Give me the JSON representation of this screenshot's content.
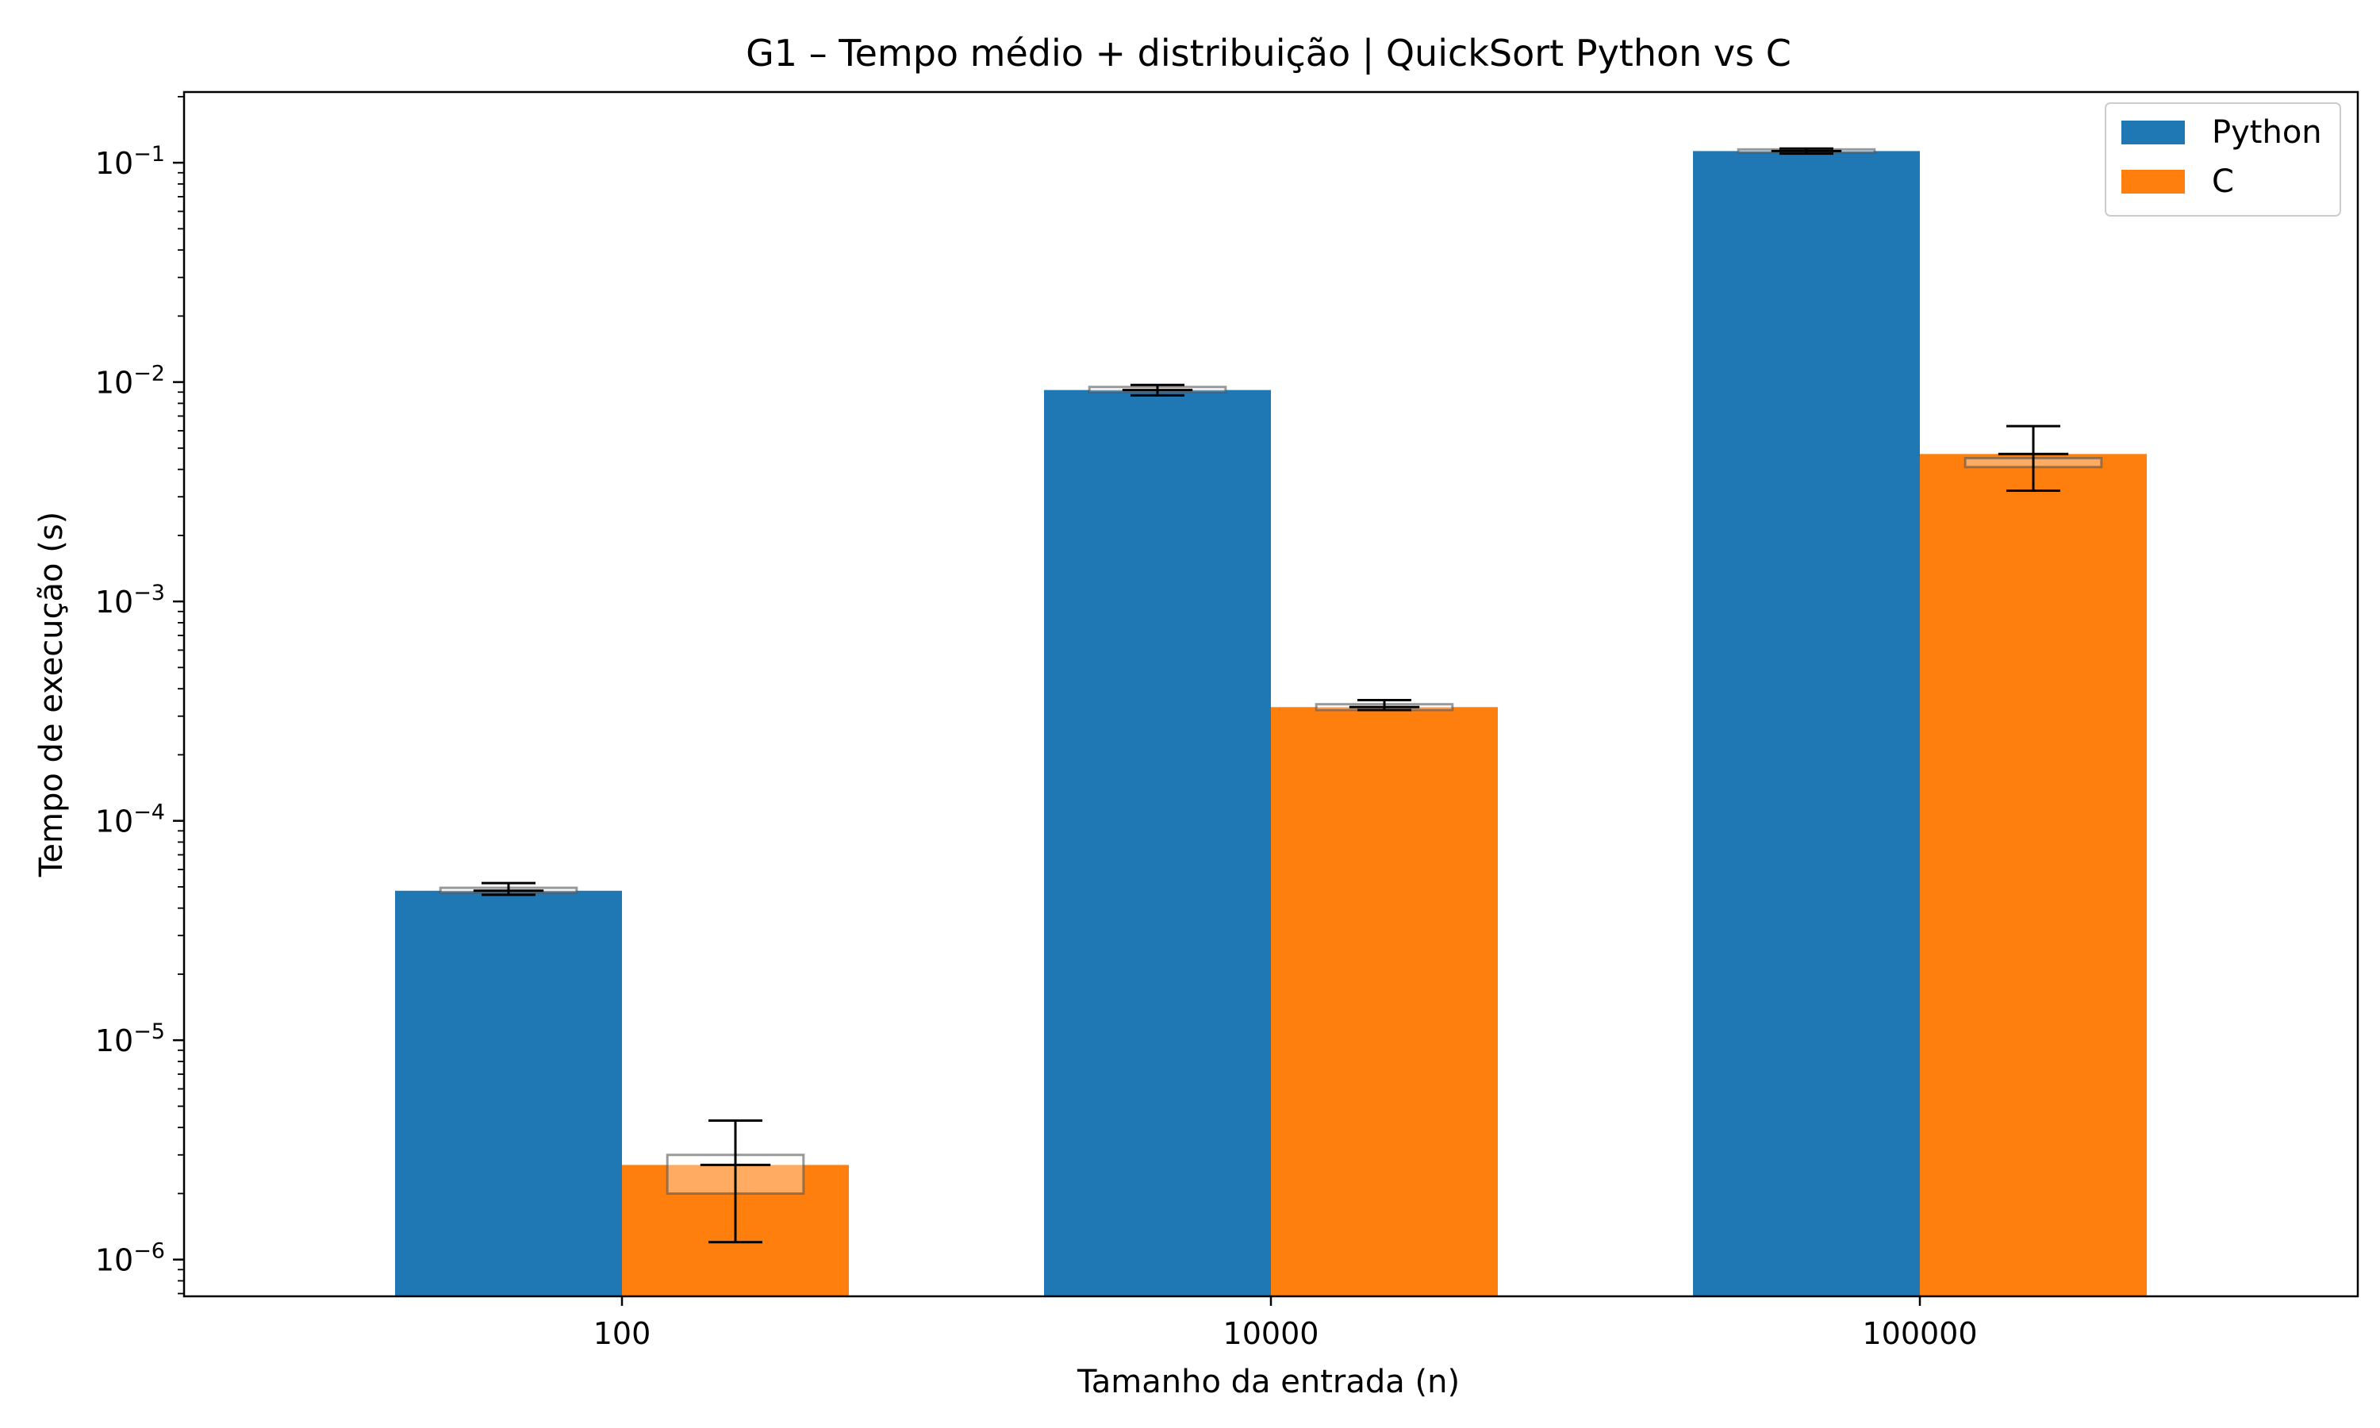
{
  "chart_data": {
    "type": "bar",
    "title": "G1 – Tempo médio + distribuição  |  QuickSort Python vs C",
    "xlabel": "Tamanho da entrada (n)",
    "ylabel": "Tempo de execução (s)",
    "yscale": "log",
    "ylim": [
      6.8e-07,
      0.21
    ],
    "ytick_values": [
      1e-06,
      1e-05,
      0.0001,
      0.001,
      0.01,
      0.1
    ],
    "ytick_labels": [
      {
        "base": "10",
        "exp": "−6"
      },
      {
        "base": "10",
        "exp": "−5"
      },
      {
        "base": "10",
        "exp": "−4"
      },
      {
        "base": "10",
        "exp": "−3"
      },
      {
        "base": "10",
        "exp": "−2"
      },
      {
        "base": "10",
        "exp": "−1"
      }
    ],
    "categories": [
      "100",
      "10000",
      "100000"
    ],
    "series": [
      {
        "name": "Python",
        "color": "#1f77b4",
        "values": [
          4.8e-05,
          0.0092,
          0.113
        ],
        "error_low": [
          4.6e-05,
          0.0087,
          0.11
        ],
        "error_high": [
          5.2e-05,
          0.0097,
          0.116
        ],
        "box_q1": [
          4.7e-05,
          0.009,
          0.111
        ],
        "box_q3": [
          4.95e-05,
          0.0095,
          0.115
        ]
      },
      {
        "name": "C",
        "color": "#ff7f0e",
        "values": [
          2.7e-06,
          0.00033,
          0.0047
        ],
        "error_low": [
          1.2e-06,
          0.00032,
          0.0032
        ],
        "error_high": [
          4.3e-06,
          0.000355,
          0.0063
        ],
        "box_q1": [
          2e-06,
          0.00032,
          0.0041
        ],
        "box_q3": [
          3e-06,
          0.00034,
          0.0045
        ]
      }
    ],
    "grid": false,
    "legend": "top-right"
  }
}
